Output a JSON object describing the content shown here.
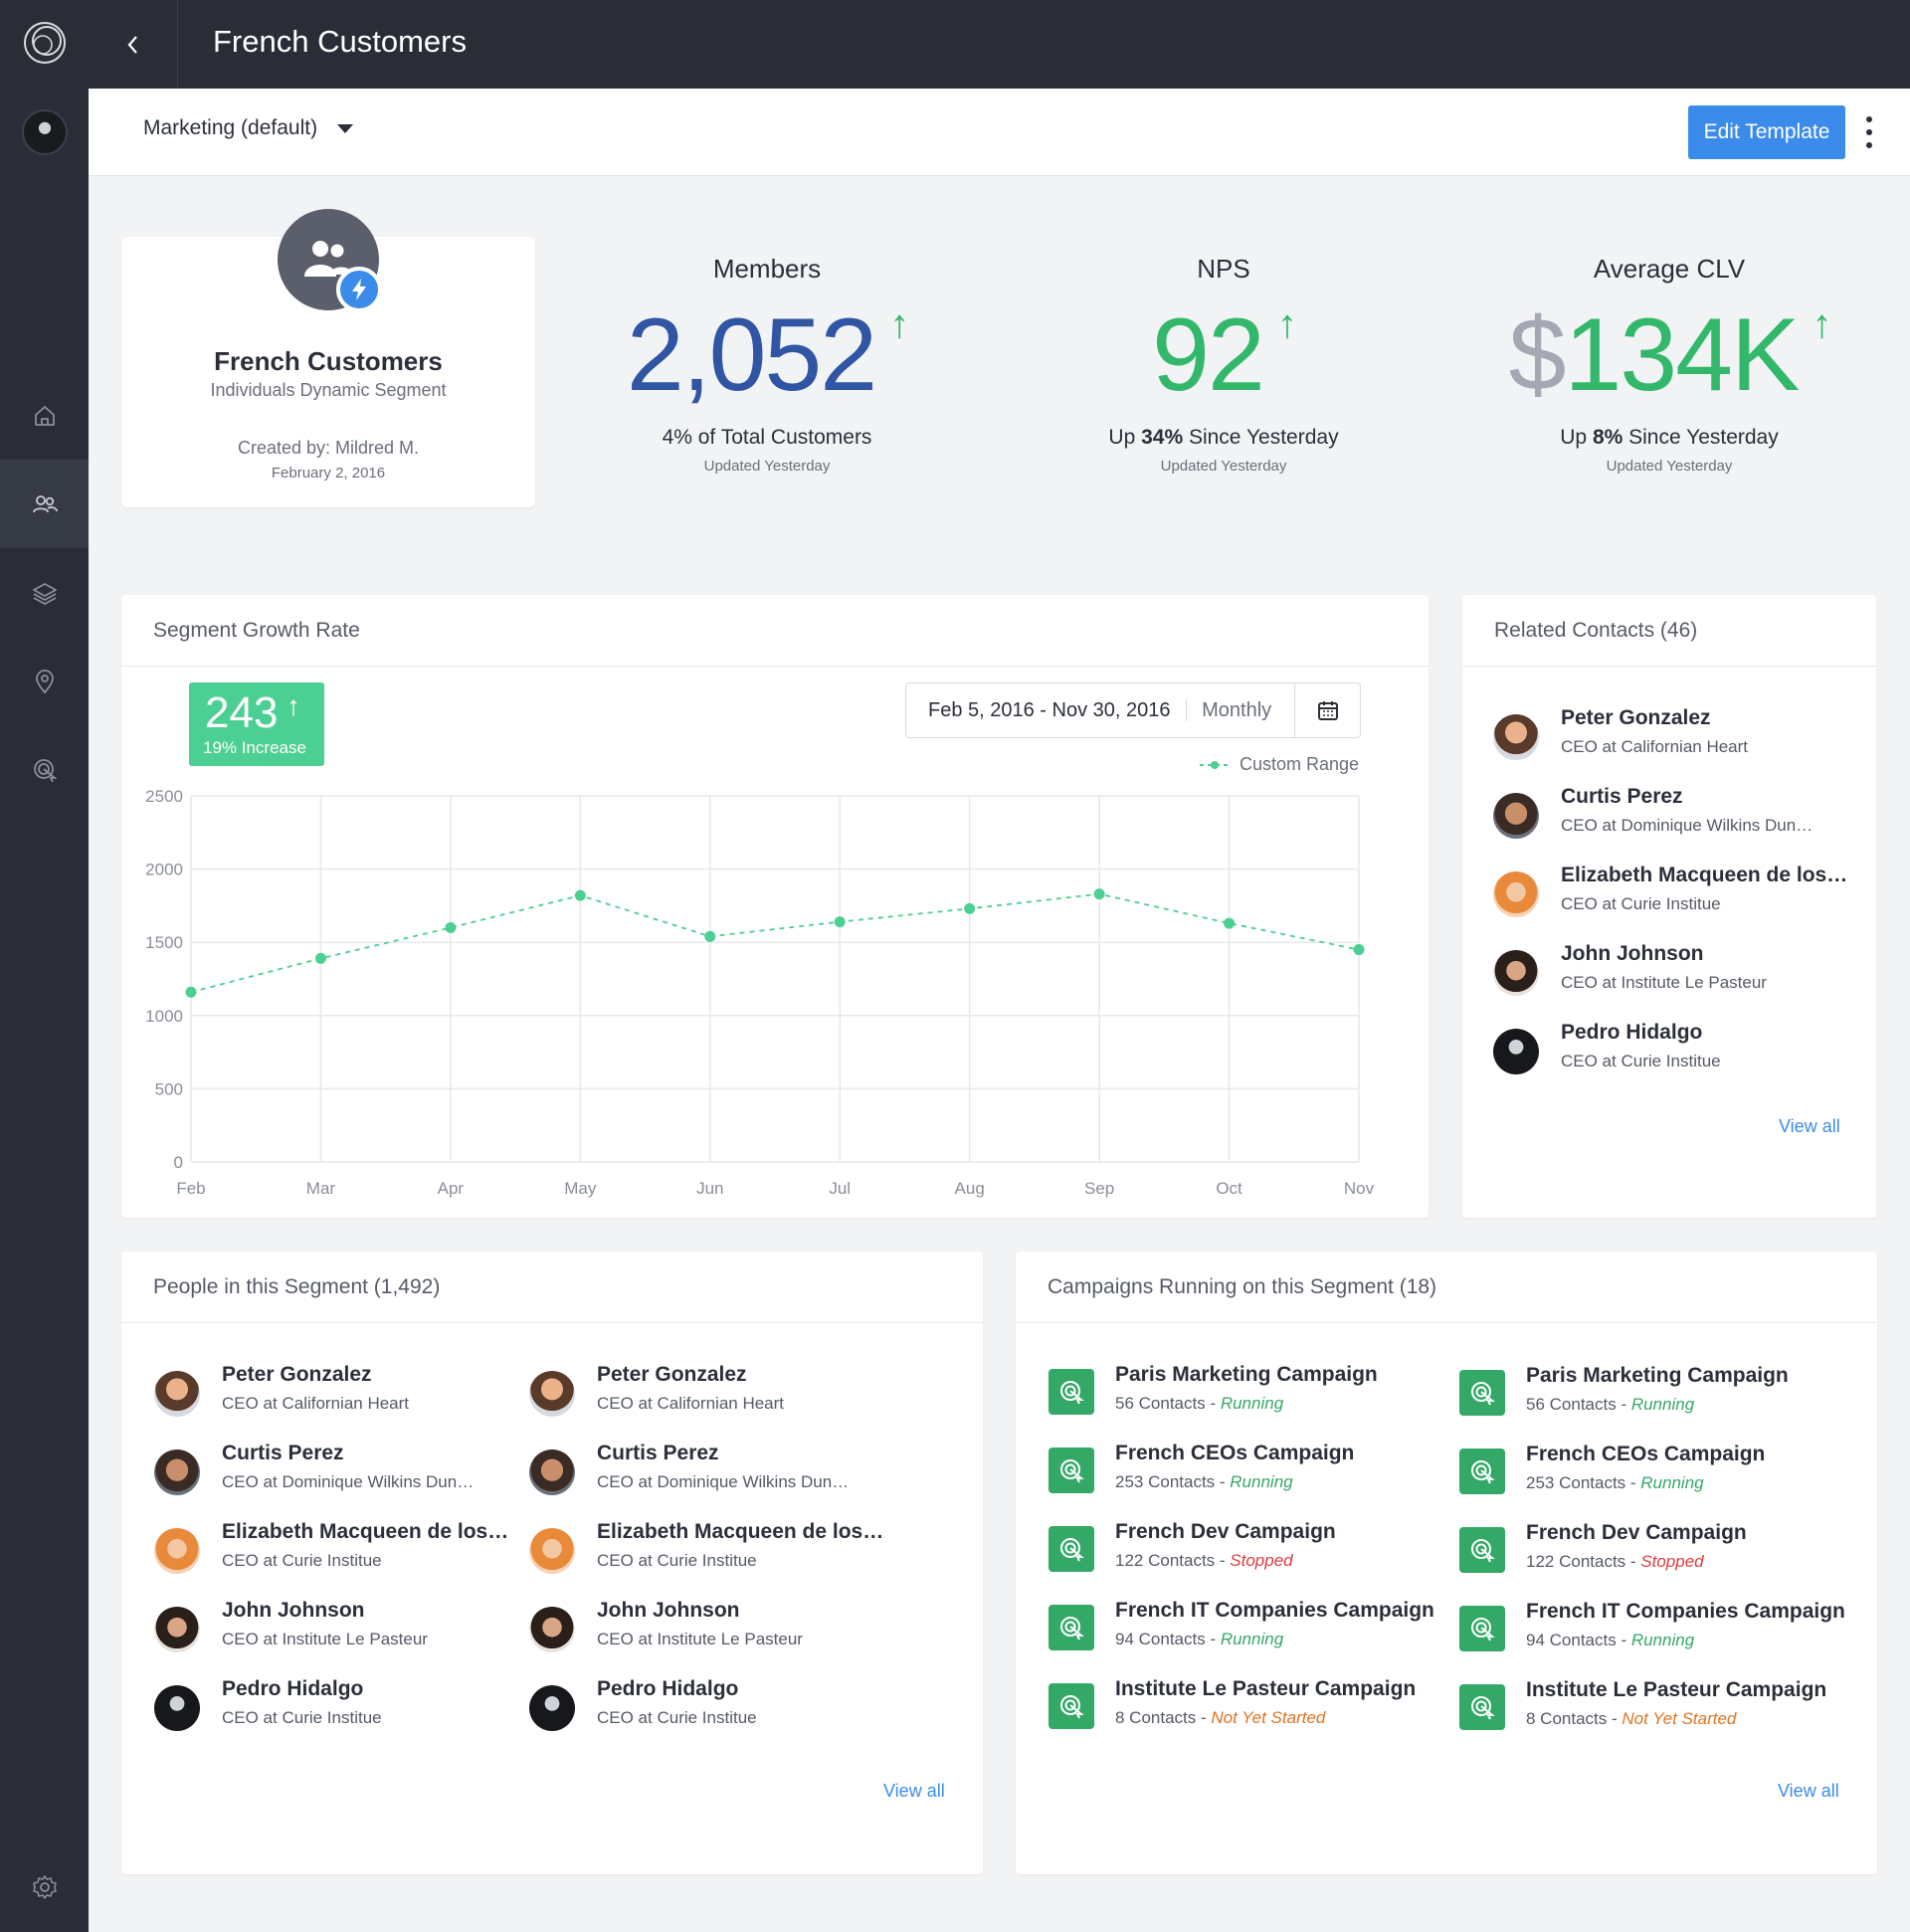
{
  "app": {
    "title": "French Customers"
  },
  "colors": {
    "sidebar": "#2a2d36",
    "accent": "#3b8bea",
    "positive": "#33b86b",
    "members_value": "#2f55a4",
    "badge": "#4ccf92",
    "line": "#4ccf92"
  },
  "sidebar": {
    "icons": [
      "logo-icon",
      "home-icon",
      "people-icon",
      "layers-icon",
      "location-icon",
      "target-icon",
      "gear-icon"
    ]
  },
  "subbar": {
    "view_select": "Marketing (default)",
    "edit_button": "Edit Template"
  },
  "segment": {
    "name": "French Customers",
    "type": "Individuals Dynamic Segment",
    "created_by": "Created by:  Mildred M.",
    "created_date": "February 2, 2016"
  },
  "stats": {
    "members": {
      "label": "Members",
      "value": "2,052",
      "note": "4% of Total Customers",
      "updated": "Updated Yesterday"
    },
    "nps": {
      "label": "NPS",
      "value": "92",
      "note_prefix": "Up ",
      "note_bold": "34%",
      "note_suffix": " Since Yesterday",
      "updated": "Updated Yesterday"
    },
    "clv": {
      "label": "Average CLV",
      "currency": "$",
      "value": "134K",
      "note_prefix": "Up ",
      "note_bold": "8%",
      "note_suffix": " Since Yesterday",
      "updated": "Updated Yesterday"
    }
  },
  "growth": {
    "title": "Segment Growth Rate",
    "badge_value": "243",
    "badge_sub": "19% Increase",
    "range_dates": "Feb 5, 2016 - Nov 30, 2016",
    "range_period": "Monthly",
    "legend": "Custom Range"
  },
  "chart_data": {
    "type": "line",
    "categories": [
      "Feb",
      "Mar",
      "Apr",
      "May",
      "Jun",
      "Jul",
      "Aug",
      "Sep",
      "Oct",
      "Nov"
    ],
    "series": [
      {
        "name": "Custom Range",
        "values": [
          1160,
          1390,
          1600,
          1820,
          1540,
          1640,
          1730,
          1830,
          1630,
          1450
        ]
      }
    ],
    "yticks": [
      0,
      500,
      1000,
      1500,
      2000,
      2500
    ],
    "ylim": [
      0,
      2500
    ],
    "grid": true,
    "line_style": "dashed",
    "legend_position": "top-right"
  },
  "related": {
    "title": "Related Contacts (46)",
    "view_all": "View all",
    "contacts": [
      {
        "name": "Peter Gonzalez",
        "role": "CEO at Californian Heart"
      },
      {
        "name": "Curtis Perez",
        "role": "CEO at Dominique Wilkins Dun…"
      },
      {
        "name": "Elizabeth Macqueen de los…",
        "role": "CEO at Curie Institue"
      },
      {
        "name": "John Johnson",
        "role": "CEO at Institute Le Pasteur"
      },
      {
        "name": "Pedro Hidalgo",
        "role": "CEO at Curie Institue"
      }
    ]
  },
  "people": {
    "title": "People in this Segment (1,492)",
    "view_all": "View all",
    "left": [
      {
        "name": "Peter Gonzalez",
        "role": "CEO at Californian Heart"
      },
      {
        "name": "Curtis Perez",
        "role": "CEO at Dominique Wilkins Dun…"
      },
      {
        "name": "Elizabeth Macqueen de los…",
        "role": "CEO at Curie Institue"
      },
      {
        "name": "John Johnson",
        "role": "CEO at Institute Le Pasteur"
      },
      {
        "name": "Pedro Hidalgo",
        "role": "CEO at Curie Institue"
      }
    ],
    "right": [
      {
        "name": "Peter Gonzalez",
        "role": "CEO at Californian Heart"
      },
      {
        "name": "Curtis Perez",
        "role": "CEO at Dominique Wilkins Dun…"
      },
      {
        "name": "Elizabeth Macqueen de los…",
        "role": "CEO at Curie Institue"
      },
      {
        "name": "John Johnson",
        "role": "CEO at Institute Le Pasteur"
      },
      {
        "name": "Pedro Hidalgo",
        "role": "CEO at Curie Institue"
      }
    ]
  },
  "campaigns": {
    "title": "Campaigns Running on this Segment (18)",
    "view_all": "View all",
    "left": [
      {
        "name": "Paris Marketing Campaign",
        "contacts": "56 Contacts - ",
        "status": "Running",
        "status_type": "running"
      },
      {
        "name": "French CEOs Campaign",
        "contacts": "253 Contacts - ",
        "status": "Running",
        "status_type": "running"
      },
      {
        "name": "French Dev Campaign",
        "contacts": "122 Contacts - ",
        "status": "Stopped",
        "status_type": "stopped"
      },
      {
        "name": "French IT Companies Campaign",
        "contacts": "94 Contacts - ",
        "status": "Running",
        "status_type": "running"
      },
      {
        "name": "Institute Le Pasteur Campaign",
        "contacts": "8 Contacts - ",
        "status": "Not Yet Started",
        "status_type": "notyet"
      }
    ],
    "right": [
      {
        "name": "Paris Marketing Campaign",
        "contacts": "56 Contacts - ",
        "status": "Running",
        "status_type": "running"
      },
      {
        "name": "French CEOs Campaign",
        "contacts": "253 Contacts - ",
        "status": "Running",
        "status_type": "running"
      },
      {
        "name": "French Dev Campaign",
        "contacts": "122 Contacts - ",
        "status": "Stopped",
        "status_type": "stopped"
      },
      {
        "name": "French IT Companies Campaign",
        "contacts": "94 Contacts - ",
        "status": "Running",
        "status_type": "running"
      },
      {
        "name": "Institute Le Pasteur Campaign",
        "contacts": "8 Contacts - ",
        "status": "Not Yet Started",
        "status_type": "notyet"
      }
    ]
  }
}
